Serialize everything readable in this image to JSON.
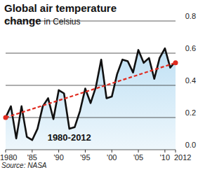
{
  "chart_data": {
    "type": "line",
    "title": "Global air temperature change",
    "subtitle": "in Celsius",
    "source": "Source: NASA",
    "annotations": [
      "1980-2012"
    ],
    "x": [
      1980,
      1981,
      1982,
      1983,
      1984,
      1985,
      1986,
      1987,
      1988,
      1989,
      1990,
      1991,
      1992,
      1993,
      1994,
      1995,
      1996,
      1997,
      1998,
      1999,
      2000,
      2001,
      2002,
      2003,
      2004,
      2005,
      2006,
      2007,
      2008,
      2009,
      2010,
      2011,
      2012
    ],
    "series": [
      {
        "name": "Global air temperature change",
        "color": "#111111",
        "values": [
          0.2,
          0.27,
          0.07,
          0.27,
          0.08,
          0.06,
          0.13,
          0.27,
          0.32,
          0.19,
          0.37,
          0.35,
          0.13,
          0.14,
          0.24,
          0.38,
          0.29,
          0.39,
          0.56,
          0.32,
          0.33,
          0.47,
          0.56,
          0.55,
          0.48,
          0.62,
          0.54,
          0.57,
          0.44,
          0.57,
          0.63,
          0.51,
          0.55
        ]
      }
    ],
    "trend": {
      "x": [
        1980,
        2012
      ],
      "values": [
        0.2,
        0.54
      ],
      "color": "#e02b20",
      "line_style": "dashed",
      "marker": "circle"
    },
    "xlim": [
      1980,
      2012
    ],
    "xticks": [
      1980,
      {
        "value": 1985,
        "label": "'85"
      },
      {
        "value": 1990,
        "label": "'90"
      },
      {
        "value": 1995,
        "label": "'95"
      },
      {
        "value": 2000,
        "label": "'00"
      },
      {
        "value": 2005,
        "label": "'05"
      },
      {
        "value": 2010,
        "label": "'10"
      },
      2012
    ],
    "ylim": [
      0,
      0.8
    ],
    "yticks": [
      {
        "value": 0,
        "label": "0.0"
      },
      0.2,
      0.4,
      0.6,
      0.8
    ],
    "grid": true
  }
}
